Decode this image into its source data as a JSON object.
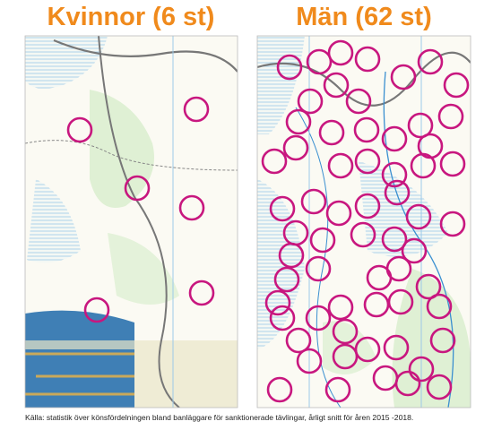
{
  "panels": [
    {
      "title": "Kvinnor (6 st)"
    },
    {
      "title": "Män (62 st)"
    }
  ],
  "source": "Källa: statistik över könsfördelningen bland banläggare för sanktionerade tävlingar, årligt snitt för åren 2015 -2018."
}
